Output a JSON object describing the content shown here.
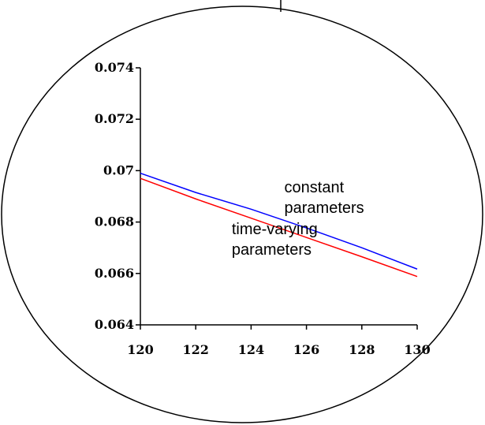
{
  "chart_data": {
    "type": "line",
    "x": [
      120,
      122,
      124,
      126,
      128,
      130
    ],
    "xlim": [
      120,
      130
    ],
    "ylim": [
      0.064,
      0.074
    ],
    "x_ticks": [
      "120",
      "122",
      "124",
      "126",
      "128",
      "130"
    ],
    "y_ticks": [
      "0.064",
      "0.066",
      "0.068",
      "0.07",
      "0.072",
      "0.074"
    ],
    "grid": false,
    "series": [
      {
        "name": "constant parameters",
        "color": "#0000ff",
        "values": [
          0.0699,
          0.06915,
          0.0685,
          0.06777,
          0.067,
          0.06617
        ]
      },
      {
        "name": "time-varying parameters",
        "color": "#ff0000",
        "values": [
          0.0697,
          0.0689,
          0.06815,
          0.0674,
          0.06665,
          0.06588
        ]
      }
    ],
    "annotations": [
      {
        "lines": [
          "constant",
          "parameters"
        ],
        "x": 125.2,
        "y": 0.06915
      },
      {
        "lines": [
          "time-varying",
          "parameters"
        ],
        "x": 123.3,
        "y": 0.06752
      }
    ]
  }
}
